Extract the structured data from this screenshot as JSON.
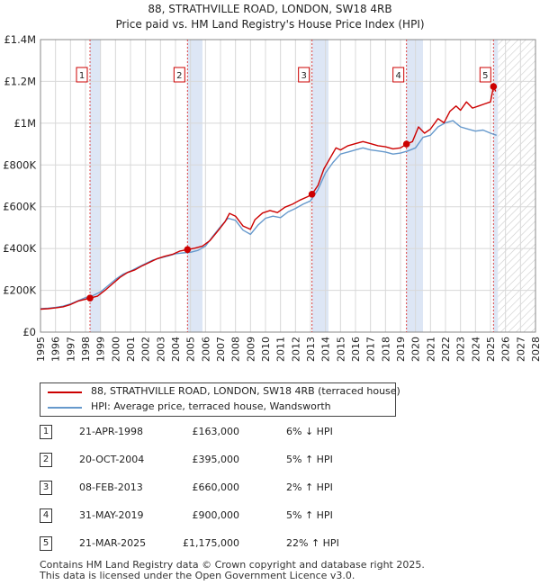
{
  "title": {
    "line1": "88, STRATHVILLE ROAD, LONDON, SW18 4RB",
    "line2": "Price paid vs. HM Land Registry's House Price Index (HPI)"
  },
  "colors": {
    "property": "#cc0000",
    "hpi": "#6699cc",
    "shade": "#dde6f5",
    "marker_line": "#dd4444",
    "grid": "#d8d8d8"
  },
  "chart_data": {
    "type": "line",
    "xlim": [
      1995,
      2028
    ],
    "ylim": [
      0,
      1400000
    ],
    "y_ticks": [
      0,
      200000,
      400000,
      600000,
      800000,
      1000000,
      1200000,
      1400000
    ],
    "y_tick_labels": [
      "£0",
      "£200K",
      "£400K",
      "£600K",
      "£800K",
      "£1M",
      "£1.2M",
      "£1.4M"
    ],
    "x_ticks": [
      1995,
      1996,
      1997,
      1998,
      1999,
      2000,
      2001,
      2002,
      2003,
      2004,
      2005,
      2006,
      2007,
      2008,
      2009,
      2010,
      2011,
      2012,
      2013,
      2014,
      2015,
      2016,
      2017,
      2018,
      2019,
      2020,
      2021,
      2022,
      2023,
      2024,
      2025,
      2026,
      2027,
      2028
    ],
    "x_tick_labels": [
      "1995",
      "1996",
      "1997",
      "1998",
      "1999",
      "2000",
      "2001",
      "2002",
      "2003",
      "2004",
      "2005",
      "2006",
      "2007",
      "2008",
      "2009",
      "2010",
      "2011",
      "2012",
      "2013",
      "2014",
      "2015",
      "2016",
      "2017",
      "2018",
      "2019",
      "2020",
      "2021",
      "2022",
      "2023",
      "2024",
      "2025",
      "2026",
      "2027",
      "2028"
    ],
    "forecast_start": 2025.5,
    "shaded_ranges": [
      [
        1998.3,
        1999.0
      ],
      [
        2004.8,
        2005.8
      ],
      [
        2013.1,
        2014.2
      ],
      [
        2019.4,
        2020.5
      ],
      [
        2025.2,
        2025.5
      ]
    ],
    "series": [
      {
        "name": "88, STRATHVILLE ROAD, LONDON, SW18 4RB (terraced house)",
        "color": "#cc0000",
        "x": [
          1995,
          1995.5,
          1996,
          1996.5,
          1997,
          1997.5,
          1998.3,
          1998.8,
          1999.3,
          1999.8,
          2000.3,
          2000.8,
          2001.3,
          2001.8,
          2002.3,
          2002.8,
          2003.3,
          2003.8,
          2004.3,
          2004.8,
          2005.3,
          2005.8,
          2006.3,
          2006.8,
          2007.3,
          2007.6,
          2008.0,
          2008.5,
          2009.0,
          2009.3,
          2009.8,
          2010.3,
          2010.8,
          2011.3,
          2011.8,
          2012.3,
          2012.8,
          2013.1,
          2013.5,
          2013.9,
          2014.3,
          2014.7,
          2015.0,
          2015.5,
          2016.0,
          2016.5,
          2017.0,
          2017.5,
          2018.0,
          2018.5,
          2019.0,
          2019.4,
          2019.8,
          2020.2,
          2020.6,
          2021.0,
          2021.5,
          2021.9,
          2022.3,
          2022.7,
          2023.0,
          2023.4,
          2023.8,
          2024.2,
          2024.6,
          2025.0,
          2025.2,
          2025.35
        ],
        "values": [
          110000,
          112000,
          116000,
          121000,
          132000,
          148000,
          163000,
          172000,
          200000,
          231000,
          262000,
          285000,
          298000,
          318000,
          335000,
          352000,
          363000,
          372000,
          388000,
          395000,
          402000,
          412000,
          438000,
          482000,
          528000,
          568000,
          555000,
          508000,
          492000,
          538000,
          570000,
          582000,
          572000,
          598000,
          612000,
          632000,
          648000,
          660000,
          702000,
          782000,
          832000,
          882000,
          872000,
          892000,
          902000,
          912000,
          902000,
          892000,
          887000,
          877000,
          882000,
          900000,
          912000,
          982000,
          952000,
          972000,
          1022000,
          1002000,
          1057000,
          1082000,
          1062000,
          1102000,
          1072000,
          1082000,
          1092000,
          1102000,
          1175000,
          1152000
        ]
      },
      {
        "name": "HPI: Average price, terraced house, Wandsworth",
        "color": "#6699cc",
        "x": [
          1995,
          1995.5,
          1996,
          1996.5,
          1997,
          1997.5,
          1998,
          1998.5,
          1999,
          1999.5,
          2000,
          2000.5,
          2001,
          2001.5,
          2002,
          2002.5,
          2003,
          2003.5,
          2004,
          2004.5,
          2005,
          2005.5,
          2006,
          2006.5,
          2007,
          2007.5,
          2008,
          2008.5,
          2009,
          2009.5,
          2010,
          2010.5,
          2011,
          2011.5,
          2012,
          2012.5,
          2013,
          2013.5,
          2014,
          2014.5,
          2015,
          2015.5,
          2016,
          2016.5,
          2017,
          2017.5,
          2018,
          2018.5,
          2019,
          2019.5,
          2020,
          2020.5,
          2021,
          2021.5,
          2022,
          2022.5,
          2023,
          2023.5,
          2024,
          2024.5,
          2025,
          2025.4
        ],
        "values": [
          112000,
          114000,
          118000,
          124000,
          135000,
          150000,
          165000,
          175000,
          192000,
          222000,
          252000,
          277000,
          292000,
          310000,
          328000,
          345000,
          355000,
          364000,
          375000,
          379000,
          382000,
          391000,
          412000,
          460000,
          505000,
          545000,
          535000,
          488000,
          468000,
          512000,
          545000,
          555000,
          548000,
          575000,
          592000,
          612000,
          628000,
          682000,
          762000,
          812000,
          852000,
          862000,
          872000,
          882000,
          872000,
          867000,
          862000,
          852000,
          857000,
          867000,
          882000,
          932000,
          942000,
          982000,
          1002000,
          1012000,
          982000,
          972000,
          962000,
          967000,
          952000,
          942000
        ]
      }
    ],
    "sale_markers": [
      {
        "label": "1",
        "x": 1998.3,
        "value": 163000
      },
      {
        "label": "2",
        "x": 2004.8,
        "value": 395000
      },
      {
        "label": "3",
        "x": 2013.1,
        "value": 660000
      },
      {
        "label": "4",
        "x": 2019.4,
        "value": 900000
      },
      {
        "label": "5",
        "x": 2025.2,
        "value": 1175000
      }
    ]
  },
  "legend": {
    "property_label": "88, STRATHVILLE ROAD, LONDON, SW18 4RB (terraced house)",
    "hpi_label": "HPI: Average price, terraced house, Wandsworth"
  },
  "sales": [
    {
      "num": "1",
      "date": "21-APR-1998",
      "price": "£163,000",
      "hpi": "6% ↓ HPI"
    },
    {
      "num": "2",
      "date": "20-OCT-2004",
      "price": "£395,000",
      "hpi": "5% ↑ HPI"
    },
    {
      "num": "3",
      "date": "08-FEB-2013",
      "price": "£660,000",
      "hpi": "2% ↑ HPI"
    },
    {
      "num": "4",
      "date": "31-MAY-2019",
      "price": "£900,000",
      "hpi": "5% ↑ HPI"
    },
    {
      "num": "5",
      "date": "21-MAR-2025",
      "price": "£1,175,000",
      "hpi": "22% ↑ HPI"
    }
  ],
  "footer": {
    "line1": "Contains HM Land Registry data © Crown copyright and database right 2025.",
    "line2": "This data is licensed under the Open Government Licence v3.0."
  }
}
